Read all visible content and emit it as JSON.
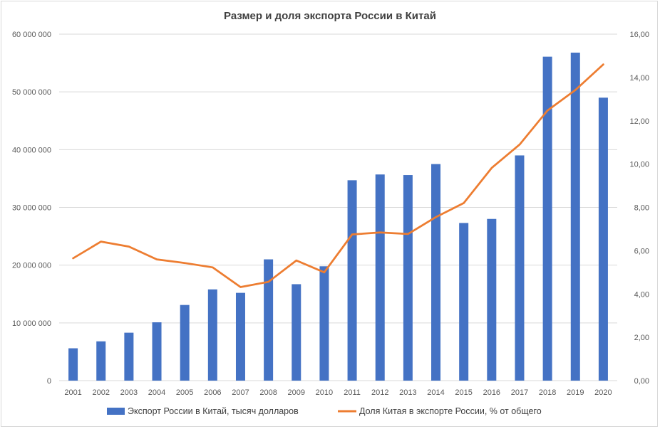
{
  "chart_data": {
    "type": "bar",
    "title": "Размер и доля экспорта России в Китай",
    "categories": [
      "2001",
      "2002",
      "2003",
      "2004",
      "2005",
      "2006",
      "2007",
      "2008",
      "2009",
      "2010",
      "2011",
      "2012",
      "2013",
      "2014",
      "2015",
      "2016",
      "2017",
      "2018",
      "2019",
      "2020"
    ],
    "series": [
      {
        "name": "Экспорт России в Китай, тысяч долларов",
        "type": "bar",
        "axis": "left",
        "color": "#4472c4",
        "values": [
          5600000,
          6800000,
          8300000,
          10100000,
          13100000,
          15800000,
          15200000,
          21000000,
          16700000,
          19800000,
          34700000,
          35700000,
          35600000,
          37500000,
          27300000,
          28000000,
          39000000,
          56100000,
          56800000,
          49000000
        ]
      },
      {
        "name": "Доля Китая в экспорте России, % от общего",
        "type": "line",
        "axis": "right",
        "color": "#ed7d31",
        "values": [
          5.65,
          6.42,
          6.19,
          5.6,
          5.43,
          5.23,
          4.32,
          4.56,
          5.55,
          5.0,
          6.75,
          6.84,
          6.77,
          7.55,
          8.2,
          9.82,
          10.9,
          12.47,
          13.42,
          14.6
        ]
      }
    ],
    "y_left": {
      "ylim": [
        0,
        60000000
      ],
      "ticks": [
        "0",
        "10 000 000",
        "20 000 000",
        "30 000 000",
        "40 000 000",
        "50 000 000",
        "60 000 000"
      ]
    },
    "y_right": {
      "ylim": [
        0,
        16
      ],
      "ticks": [
        "0,00",
        "2,00",
        "4,00",
        "6,00",
        "8,00",
        "10,00",
        "12,00",
        "14,00",
        "16,00"
      ]
    },
    "grid": true,
    "legend_position": "bottom"
  }
}
